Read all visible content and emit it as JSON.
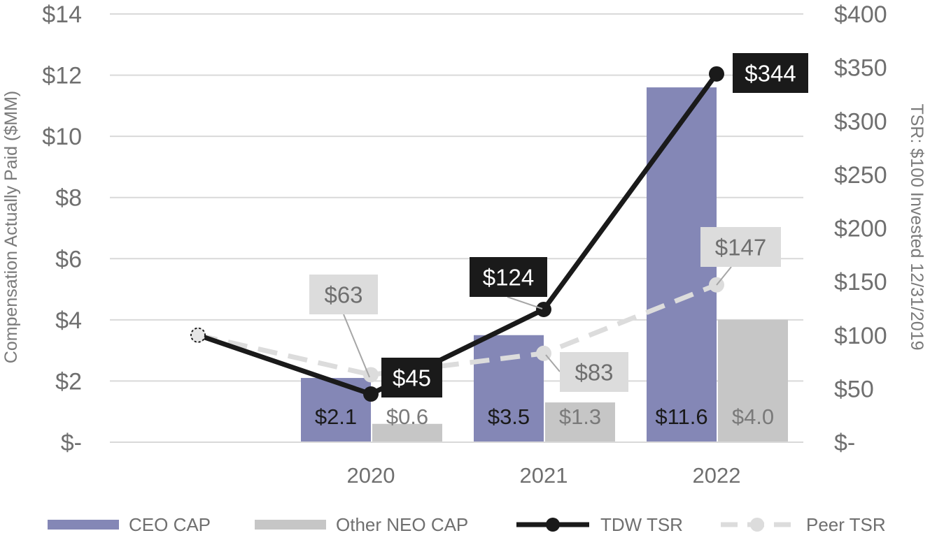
{
  "chart_data": {
    "type": "bar",
    "categories": [
      "",
      "2020",
      "2021",
      "2022"
    ],
    "bar_series": [
      {
        "name": "CEO CAP",
        "values": [
          null,
          2.1,
          3.5,
          11.6
        ],
        "labels": [
          "",
          "$2.1",
          "$3.5",
          "$11.6"
        ],
        "color": "#8487b6",
        "label_color": "#1a1a1a"
      },
      {
        "name": "Other NEO CAP",
        "values": [
          null,
          0.6,
          1.3,
          4.0
        ],
        "labels": [
          "",
          "$0.6",
          "$1.3",
          "$4.0"
        ],
        "color": "#c6c6c6",
        "label_color": "#7a7a7a"
      }
    ],
    "line_series": [
      {
        "name": "TDW TSR",
        "values": [
          100,
          45,
          124,
          344
        ],
        "labels": [
          "",
          "$45",
          "$124",
          "$344"
        ],
        "color": "#1a1a1a",
        "dashed": false
      },
      {
        "name": "Peer TSR",
        "values": [
          100,
          63,
          83,
          147
        ],
        "labels": [
          "",
          "$63",
          "$83",
          "$147"
        ],
        "color": "#dcdcdc",
        "dashed": true
      }
    ],
    "y_left": {
      "label": "Compensation Actually Paid ($MM)",
      "range": [
        0,
        14
      ],
      "ticks": [
        0,
        2,
        4,
        6,
        8,
        10,
        12,
        14
      ],
      "tick_labels": [
        "$-",
        "$2",
        "$4",
        "$6",
        "$8",
        "$10",
        "$12",
        "$14"
      ]
    },
    "y_right": {
      "label": "TSR: $100 Invested 12/31/2019",
      "range": [
        0,
        400
      ],
      "ticks": [
        0,
        50,
        100,
        150,
        200,
        250,
        300,
        350,
        400
      ],
      "tick_labels": [
        "$-",
        "$50",
        "$100",
        "$150",
        "$200",
        "$250",
        "$300",
        "$350",
        "$400"
      ]
    },
    "grid": true,
    "legend": {
      "position": "bottom",
      "entries": [
        "CEO CAP",
        "Other NEO CAP",
        "TDW TSR",
        "Peer TSR"
      ]
    }
  }
}
